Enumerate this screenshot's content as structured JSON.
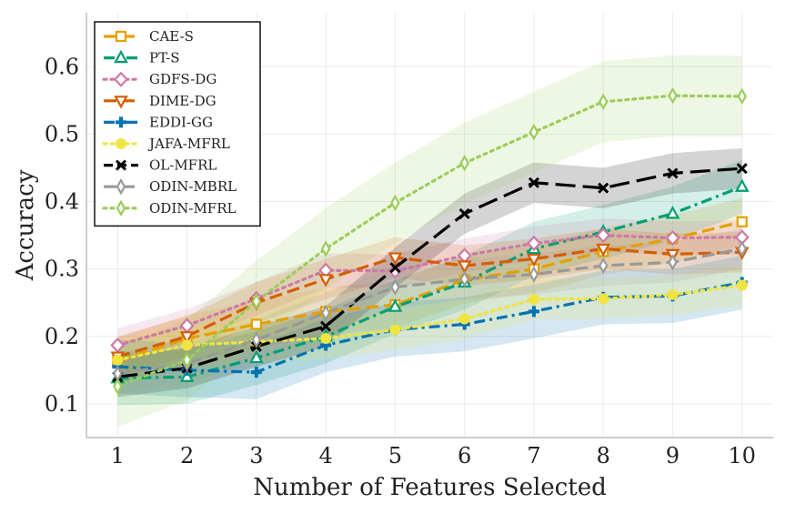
{
  "chart_data": {
    "type": "line",
    "title": "",
    "xlabel": "Number of Features Selected",
    "ylabel": "Accuracy",
    "x": [
      1,
      2,
      3,
      4,
      5,
      6,
      7,
      8,
      9,
      10
    ],
    "xticks": [
      "1",
      "2",
      "3",
      "4",
      "5",
      "6",
      "7",
      "8",
      "9",
      "10"
    ],
    "yticks": [
      0.1,
      0.2,
      0.3,
      0.4,
      0.5,
      0.6
    ],
    "ytick_labels": [
      "0.1",
      "0.2",
      "0.3",
      "0.4",
      "0.5",
      "0.6"
    ],
    "xlim": [
      0.55,
      10.45
    ],
    "ylim": [
      0.05,
      0.68
    ],
    "grid": true,
    "legend_position": "top-left",
    "series": [
      {
        "name": "CAE-S",
        "color": "#E69F00",
        "marker": "square",
        "dash": "dashed",
        "values": [
          0.163,
          0.197,
          0.218,
          0.237,
          0.247,
          0.284,
          0.3,
          0.326,
          0.345,
          0.37
        ],
        "band": 0.035
      },
      {
        "name": "PT-S",
        "color": "#009E73",
        "marker": "triangle-up",
        "dash": "dashdot",
        "values": [
          0.138,
          0.14,
          0.168,
          0.2,
          0.244,
          0.28,
          0.33,
          0.355,
          0.382,
          0.422
        ],
        "band": 0.04
      },
      {
        "name": "GDFS-DG",
        "color": "#CC79A7",
        "marker": "diamond",
        "dash": "dotted",
        "values": [
          0.187,
          0.216,
          0.256,
          0.298,
          0.297,
          0.32,
          0.338,
          0.35,
          0.346,
          0.347
        ],
        "band": 0.025
      },
      {
        "name": "DIME-DG",
        "color": "#D55E00",
        "marker": "triangle-down",
        "dash": "dashed",
        "values": [
          0.17,
          0.2,
          0.25,
          0.285,
          0.317,
          0.305,
          0.315,
          0.33,
          0.322,
          0.325
        ],
        "band": 0.03
      },
      {
        "name": "EDDI-GG",
        "color": "#0072B2",
        "marker": "plus",
        "dash": "dashdot",
        "values": [
          0.155,
          0.15,
          0.147,
          0.187,
          0.21,
          0.218,
          0.237,
          0.258,
          0.26,
          0.28
        ],
        "band": 0.04
      },
      {
        "name": "JAFA-MFRL",
        "color": "#F0E442",
        "marker": "circle",
        "dash": "dotted",
        "values": [
          0.165,
          0.187,
          0.192,
          0.197,
          0.21,
          0.226,
          0.255,
          0.256,
          0.262,
          0.276
        ],
        "band": 0.03
      },
      {
        "name": "OL-MFRL",
        "color": "#000000",
        "marker": "x",
        "dash": "longdash",
        "values": [
          0.14,
          0.153,
          0.185,
          0.215,
          0.302,
          0.382,
          0.428,
          0.42,
          0.442,
          0.449
        ],
        "band": 0.03
      },
      {
        "name": "ODIN-MBRL",
        "color": "#999999",
        "marker": "thin-diamond",
        "dash": "dashed",
        "values": [
          0.145,
          0.16,
          0.195,
          0.235,
          0.273,
          0.285,
          0.292,
          0.305,
          0.31,
          0.33
        ],
        "band": 0.03
      },
      {
        "name": "ODIN-MFRL",
        "color": "#9ACD5A",
        "marker": "thin-diamond",
        "dash": "dotted",
        "values": [
          0.126,
          0.165,
          0.252,
          0.33,
          0.398,
          0.457,
          0.503,
          0.548,
          0.557,
          0.556
        ],
        "band": 0.06
      }
    ]
  }
}
